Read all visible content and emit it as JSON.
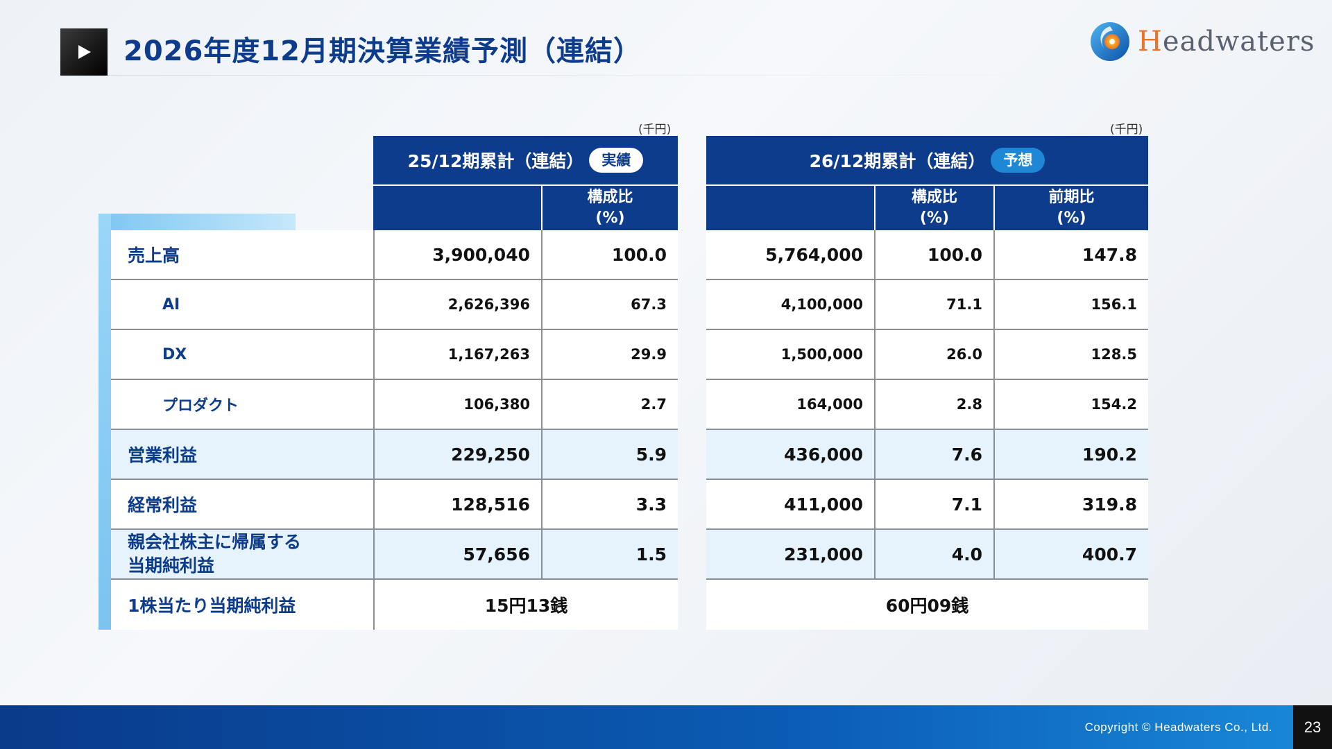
{
  "header": {
    "title": "2026年度12月期決算業績予測（連結）",
    "logo_text_first": "H",
    "logo_text_rest": "eadwaters"
  },
  "units": {
    "left": "(千円)",
    "right": "(千円)"
  },
  "rows": {
    "labels": [
      {
        "text": "売上高"
      },
      {
        "text": "AI"
      },
      {
        "text": "DX"
      },
      {
        "text": "プロダクト"
      },
      {
        "text": "営業利益"
      },
      {
        "text": "経常利益"
      },
      {
        "text_line1": "親会社株主に帰属する",
        "text_line2": "当期純利益"
      },
      {
        "text": "1株当たり当期純利益"
      }
    ]
  },
  "left_table": {
    "title": "25/12期累計（連結）",
    "badge": "実績",
    "col2_header_line1": "構成比",
    "col2_header_line2": "(%)",
    "data": [
      [
        "3,900,040",
        "100.0"
      ],
      [
        "2,626,396",
        "67.3"
      ],
      [
        "1,167,263",
        "29.9"
      ],
      [
        "106,380",
        "2.7"
      ],
      [
        "229,250",
        "5.9"
      ],
      [
        "128,516",
        "3.3"
      ],
      [
        "57,656",
        "1.5"
      ]
    ],
    "eps": "15円13銭"
  },
  "right_table": {
    "title": "26/12期累計（連結）",
    "badge": "予想",
    "col2_header_line1": "構成比",
    "col2_header_line2": "(%)",
    "col3_header_line1": "前期比",
    "col3_header_line2": "(%)",
    "data": [
      [
        "5,764,000",
        "100.0",
        "147.8"
      ],
      [
        "4,100,000",
        "71.1",
        "156.1"
      ],
      [
        "1,500,000",
        "26.0",
        "128.5"
      ],
      [
        "164,000",
        "2.8",
        "154.2"
      ],
      [
        "436,000",
        "7.6",
        "190.2"
      ],
      [
        "411,000",
        "7.1",
        "319.8"
      ],
      [
        "231,000",
        "4.0",
        "400.7"
      ]
    ],
    "eps": "60円09銭"
  },
  "footer": {
    "copyright": "Copyright © Headwaters Co., Ltd.",
    "page_number": "23"
  },
  "colors": {
    "primary": "#0d3c8c",
    "accent_light": "#e6f3fc",
    "badge_blue": "#1e88d6",
    "logo_orange": "#e8752a"
  }
}
